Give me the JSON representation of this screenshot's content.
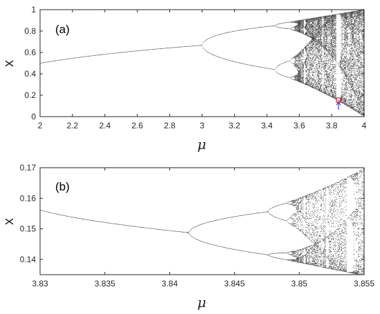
{
  "chart_data": [
    {
      "type": "scatter",
      "panel_label": "(a)",
      "xlabel": "μ",
      "ylabel": "x",
      "xlim": [
        2,
        4
      ],
      "ylim": [
        0,
        1
      ],
      "xticks": [
        "2",
        "2.2",
        "2.4",
        "2.6",
        "2.8",
        "3",
        "3.2",
        "3.4",
        "3.6",
        "3.8",
        "4"
      ],
      "yticks": [
        "0",
        "0.2",
        "0.4",
        "0.6",
        "0.8",
        "1"
      ],
      "grid": false,
      "map": "logistic x(n+1) = μ x(n) (1 - x(n))",
      "highlight": {
        "x": 3.842,
        "y": 0.155,
        "color": "#e0303a",
        "arrow_color": "#2a3fd4"
      }
    },
    {
      "type": "scatter",
      "panel_label": "(b)",
      "xlabel": "μ",
      "ylabel": "x",
      "xlim": [
        3.83,
        3.855
      ],
      "ylim": [
        0.135,
        0.17
      ],
      "xticks": [
        "3.83",
        "3.835",
        "3.84",
        "3.845",
        "3.85",
        "3.855"
      ],
      "yticks": [
        "0.14",
        "0.15",
        "0.16",
        "0.17"
      ],
      "grid": false,
      "map": "logistic x(n+1) = μ x(n) (1 - x(n))"
    }
  ],
  "colors": {
    "points": "#000000",
    "axes": "#262626"
  }
}
